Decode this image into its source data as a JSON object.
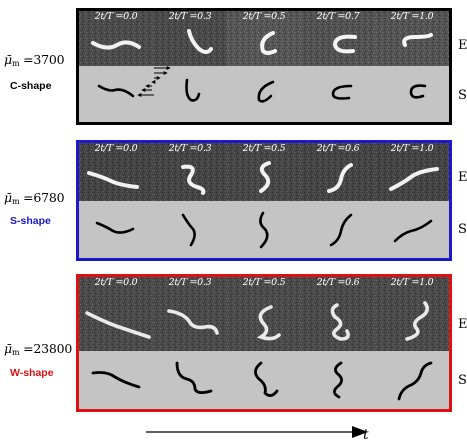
{
  "figure": {
    "row_labels": {
      "experiment": "E",
      "simulation": "S"
    },
    "time_axis_label": "t",
    "colors": {
      "panel1": "#000000",
      "panel2": "#1a1acc",
      "panel3": "#dd1111",
      "simulation_bg": "#c4c4c4"
    },
    "panels": [
      {
        "mu_prefix": "μ̄",
        "mu_sub": "m",
        "mu_value": " =3700",
        "shape_label": "C-shape",
        "shape_color": "#000000",
        "border_color": "#000000",
        "times": [
          "2t/T =0.0",
          "2t/T =0.3",
          "2t/T =0.5",
          "2t/T =0.7",
          "2t/T =1.0"
        ]
      },
      {
        "mu_prefix": "μ̄",
        "mu_sub": "m",
        "mu_value": " =6780",
        "shape_label": "S-shape",
        "shape_color": "#1a1acc",
        "border_color": "#1a1acc",
        "times": [
          "2t/T =0.0",
          "2t/T =0.3",
          "2t/T =0.5",
          "2t/T =0.6",
          "2t/T =1.0"
        ]
      },
      {
        "mu_prefix": "μ̄",
        "mu_sub": "m",
        "mu_value": " =23800",
        "shape_label": "W-shape",
        "shape_color": "#dd1111",
        "border_color": "#dd1111",
        "times": [
          "2t/T =0.0",
          "2t/T =0.3",
          "2t/T =0.5",
          "2t/T =0.6",
          "2t/T =1.0"
        ]
      }
    ]
  }
}
